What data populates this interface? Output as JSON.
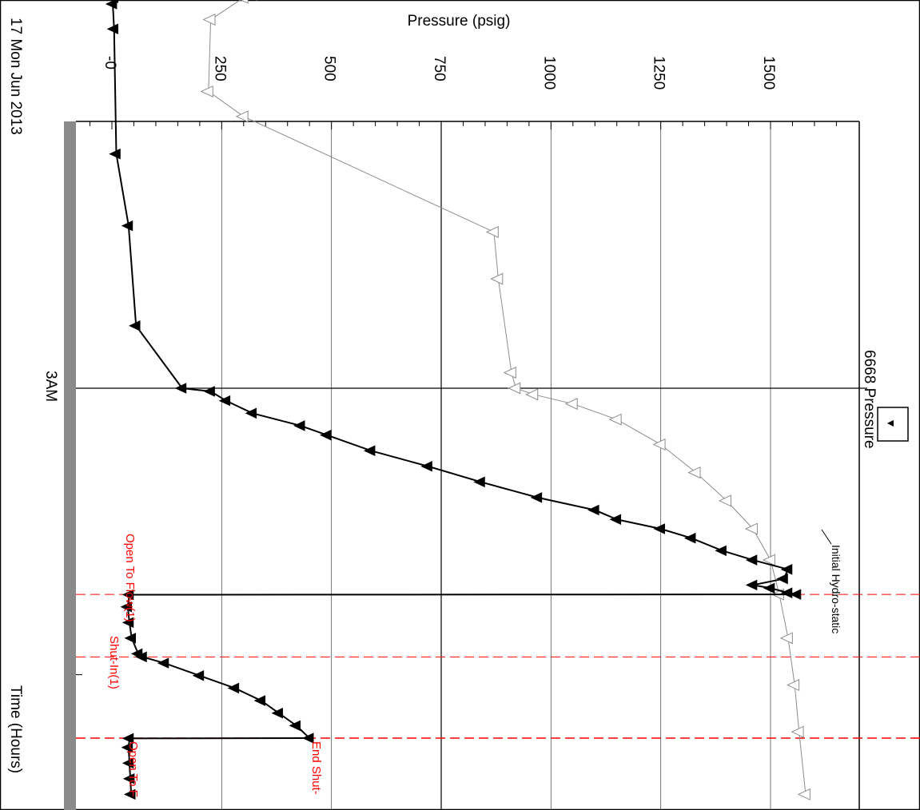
{
  "chart_data": {
    "type": "line",
    "title": "",
    "ylabel": "Pressure (psig)",
    "xlabel": "Time (Hours)",
    "date_label": "17 Mon Jun 2013",
    "ylim": [
      -10,
      1660
    ],
    "y_ticks": [
      {
        "value": 0,
        "label": "-0"
      },
      {
        "value": 250,
        "label": "250"
      },
      {
        "value": 500,
        "label": "500"
      },
      {
        "value": 750,
        "label": "750"
      },
      {
        "value": 1000,
        "label": "1000"
      },
      {
        "value": 1250,
        "label": "1250"
      },
      {
        "value": 1500,
        "label": "1500"
      }
    ],
    "x_ticks": [
      {
        "value": 3.0,
        "label": "3AM"
      }
    ],
    "xlim": [
      1.62,
      4.3
    ],
    "grid": true,
    "legend": {
      "placement": "top-right",
      "entries": [
        {
          "name": "6668 Pressure",
          "marker": "▼"
        }
      ]
    },
    "events": [
      {
        "t": 3.66,
        "label": "Open To Flow(1)"
      },
      {
        "t": 3.86,
        "label": "Shut-In(1)"
      },
      {
        "t": 4.12,
        "label": "End Shut-"
      },
      {
        "t": 4.12,
        "label": "Open To F"
      }
    ],
    "annotations": [
      {
        "t": 3.66,
        "value": 1635,
        "label": "Initial Hydro-static"
      }
    ],
    "series": [
      {
        "name": "6668 Pressure",
        "marker": "filled-triangle",
        "color": "#000000",
        "points": [
          [
            1.75,
            5
          ],
          [
            1.77,
            2
          ],
          [
            1.85,
            5
          ],
          [
            2.25,
            10
          ],
          [
            2.48,
            38
          ],
          [
            2.8,
            55
          ],
          [
            3.0,
            160
          ],
          [
            3.01,
            225
          ],
          [
            3.04,
            260
          ],
          [
            3.08,
            320
          ],
          [
            3.12,
            430
          ],
          [
            3.15,
            490
          ],
          [
            3.2,
            590
          ],
          [
            3.25,
            720
          ],
          [
            3.3,
            840
          ],
          [
            3.35,
            970
          ],
          [
            3.39,
            1100
          ],
          [
            3.42,
            1150
          ],
          [
            3.45,
            1250
          ],
          [
            3.48,
            1320
          ],
          [
            3.52,
            1390
          ],
          [
            3.55,
            1460
          ],
          [
            3.58,
            1540
          ],
          [
            3.61,
            1530
          ],
          [
            3.63,
            1460
          ],
          [
            3.64,
            1500
          ],
          [
            3.655,
            1540
          ],
          [
            3.66,
            1560
          ],
          [
            3.661,
            40
          ],
          [
            3.7,
            36
          ],
          [
            3.75,
            40
          ],
          [
            3.8,
            45
          ],
          [
            3.85,
            60
          ],
          [
            3.86,
            70
          ],
          [
            3.88,
            120
          ],
          [
            3.92,
            200
          ],
          [
            3.96,
            280
          ],
          [
            4.0,
            340
          ],
          [
            4.04,
            380
          ],
          [
            4.08,
            420
          ],
          [
            4.12,
            450
          ],
          [
            4.121,
            40
          ],
          [
            4.15,
            38
          ],
          [
            4.2,
            40
          ],
          [
            4.25,
            42
          ],
          [
            4.3,
            44
          ]
        ]
      },
      {
        "name": "",
        "marker": "hollow-triangle",
        "color": "#8c8c8c",
        "points": [
          [
            1.72,
            340
          ],
          [
            1.73,
            330
          ],
          [
            1.74,
            320
          ],
          [
            1.75,
            300
          ],
          [
            1.82,
            225
          ],
          [
            2.05,
            220
          ],
          [
            2.13,
            300
          ],
          [
            2.5,
            870
          ],
          [
            2.65,
            880
          ],
          [
            2.95,
            910
          ],
          [
            3.0,
            920
          ],
          [
            3.02,
            960
          ],
          [
            3.05,
            1050
          ],
          [
            3.1,
            1150
          ],
          [
            3.18,
            1250
          ],
          [
            3.27,
            1330
          ],
          [
            3.36,
            1400
          ],
          [
            3.45,
            1460
          ],
          [
            3.55,
            1500
          ],
          [
            3.66,
            1520
          ],
          [
            3.8,
            1540
          ],
          [
            3.95,
            1555
          ],
          [
            4.1,
            1565
          ],
          [
            4.3,
            1580
          ]
        ]
      }
    ]
  }
}
